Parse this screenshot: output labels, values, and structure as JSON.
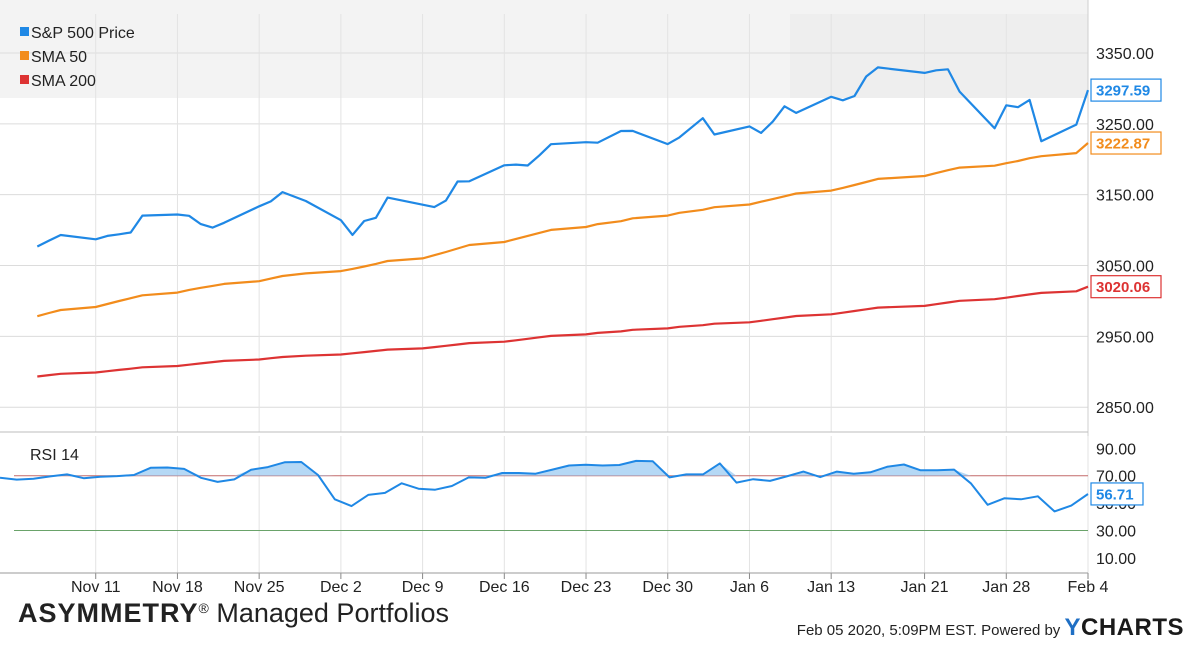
{
  "footer": {
    "brand_name": "ASYMMETRY",
    "brand_reg": "®",
    "brand_rest": " Managed Portfolios",
    "timestamp": "Feb 05 2020, 5:09PM EST.",
    "powered_by": "Powered by",
    "logo_y": "Y",
    "logo_rest": "CHARTS"
  },
  "colors": {
    "price": "#1f88e5",
    "sma50": "#f28c1c",
    "sma200": "#dd3333",
    "rsi": "#1f88e5",
    "rsi_fill": "#9ccbf2",
    "rsi_line70": "#c46a6a",
    "rsi_line30": "#6aa36a"
  },
  "chart_data": [
    {
      "type": "line",
      "x_dates": [
        "2019-11-06",
        "2019-11-07",
        "2019-11-08",
        "2019-11-11",
        "2019-11-12",
        "2019-11-13",
        "2019-11-14",
        "2019-11-15",
        "2019-11-18",
        "2019-11-19",
        "2019-11-20",
        "2019-11-21",
        "2019-11-22",
        "2019-11-25",
        "2019-11-26",
        "2019-11-27",
        "2019-11-29",
        "2019-12-02",
        "2019-12-03",
        "2019-12-04",
        "2019-12-05",
        "2019-12-06",
        "2019-12-09",
        "2019-12-10",
        "2019-12-11",
        "2019-12-12",
        "2019-12-13",
        "2019-12-16",
        "2019-12-17",
        "2019-12-18",
        "2019-12-19",
        "2019-12-20",
        "2019-12-23",
        "2019-12-24",
        "2019-12-26",
        "2019-12-27",
        "2019-12-30",
        "2019-12-31",
        "2020-01-02",
        "2020-01-03",
        "2020-01-06",
        "2020-01-07",
        "2020-01-08",
        "2020-01-09",
        "2020-01-10",
        "2020-01-13",
        "2020-01-14",
        "2020-01-15",
        "2020-01-16",
        "2020-01-17",
        "2020-01-21",
        "2020-01-22",
        "2020-01-23",
        "2020-01-24",
        "2020-01-27",
        "2020-01-28",
        "2020-01-29",
        "2020-01-30",
        "2020-01-31",
        "2020-02-03",
        "2020-02-04"
      ],
      "x_tick_labels": [
        "Nov 11",
        "Nov 18",
        "Nov 25",
        "Dec 2",
        "Dec 9",
        "Dec 16",
        "Dec 23",
        "Dec 30",
        "Jan 6",
        "Jan 13",
        "Jan 21",
        "Jan 28",
        "Feb 4"
      ],
      "x_tick_dates": [
        "2019-11-11",
        "2019-11-18",
        "2019-11-25",
        "2019-12-02",
        "2019-12-09",
        "2019-12-16",
        "2019-12-23",
        "2019-12-30",
        "2020-01-06",
        "2020-01-13",
        "2020-01-21",
        "2020-01-28",
        "2020-02-04"
      ],
      "y_ticks": [
        "3350.00",
        "3250.00",
        "3150.00",
        "3050.00",
        "2950.00",
        "2850.00"
      ],
      "y_tick_values": [
        3350,
        3250,
        3150,
        3050,
        2950,
        2850
      ],
      "ylim": [
        2815,
        3405
      ],
      "grid": true,
      "legend_position": "top-left",
      "series": [
        {
          "name": "S&P 500 Price",
          "color_key": "price",
          "last_label": "3297.59",
          "values": [
            3076.8,
            3085.2,
            3093.1,
            3087.0,
            3091.8,
            3094.0,
            3096.6,
            3120.5,
            3122.0,
            3120.2,
            3108.5,
            3103.5,
            3110.3,
            3133.6,
            3140.5,
            3153.6,
            3141.0,
            3113.9,
            3093.2,
            3112.8,
            3117.4,
            3145.9,
            3135.9,
            3132.5,
            3141.6,
            3168.6,
            3168.8,
            3191.5,
            3192.5,
            3191.1,
            3205.4,
            3221.2,
            3224.0,
            3223.4,
            3239.9,
            3240.0,
            3221.3,
            3230.8,
            3257.9,
            3234.9,
            3246.3,
            3237.2,
            3253.1,
            3274.7,
            3265.4,
            3288.1,
            3283.2,
            3289.3,
            3316.8,
            3329.6,
            3321.8,
            3325.5,
            3327.0,
            3295.5,
            3243.6,
            3276.2,
            3273.4,
            3283.7,
            3225.5,
            3248.9,
            3297.6
          ]
        },
        {
          "name": "SMA 50",
          "color_key": "sma50",
          "last_label": "3222.87",
          "values": [
            2978.5,
            2982.9,
            2987.2,
            2991.4,
            2995.6,
            2999.9,
            3003.9,
            3008.0,
            3011.8,
            3015.6,
            3018.6,
            3021.2,
            3024.1,
            3027.8,
            3031.5,
            3035.2,
            3038.8,
            3042.1,
            3045.2,
            3048.6,
            3052.2,
            3056.3,
            3060.1,
            3064.6,
            3069.1,
            3074.0,
            3078.9,
            3083.2,
            3087.5,
            3091.8,
            3096.0,
            3100.2,
            3104.4,
            3108.5,
            3112.6,
            3116.6,
            3120.4,
            3124.4,
            3128.7,
            3132.3,
            3136.1,
            3140.0,
            3143.8,
            3147.7,
            3151.6,
            3155.7,
            3159.6,
            3163.7,
            3167.9,
            3172.2,
            3176.3,
            3180.4,
            3184.5,
            3188.2,
            3190.9,
            3194.4,
            3197.5,
            3201.4,
            3204.3,
            3208.6,
            3222.9
          ]
        },
        {
          "name": "SMA 200",
          "color_key": "sma200",
          "last_label": "3020.06",
          "values": [
            2893.4,
            2895.3,
            2897.2,
            2899.0,
            2900.8,
            2902.6,
            2904.4,
            2906.3,
            2908.2,
            2910.0,
            2911.8,
            2913.6,
            2915.4,
            2917.3,
            2919.1,
            2920.9,
            2922.7,
            2924.4,
            2926.1,
            2927.8,
            2929.5,
            2931.3,
            2933.0,
            2934.8,
            2936.6,
            2938.5,
            2940.5,
            2942.4,
            2944.4,
            2946.5,
            2948.6,
            2950.7,
            2952.8,
            2954.9,
            2957.0,
            2959.2,
            2961.3,
            2963.5,
            2965.7,
            2967.8,
            2969.9,
            2972.0,
            2974.2,
            2976.5,
            2978.8,
            2981.1,
            2983.4,
            2985.8,
            2988.2,
            2990.6,
            2993.0,
            2995.4,
            2997.8,
            3000.2,
            3002.4,
            3004.6,
            3006.9,
            3009.2,
            3011.3,
            3013.6,
            3020.1
          ]
        }
      ]
    },
    {
      "type": "line",
      "title": "RSI 14",
      "y_ticks": [
        "90.00",
        "70.00",
        "50.00",
        "30.00",
        "10.00"
      ],
      "y_tick_values": [
        90,
        70,
        50,
        30,
        10
      ],
      "ylim": [
        -1,
        99
      ],
      "overbought": 70,
      "oversold": 30,
      "series": [
        {
          "name": "RSI 14",
          "color_key": "rsi",
          "last_label": "56.71",
          "values": [
            68.5,
            67.2,
            67.8,
            69.5,
            71.0,
            68.2,
            69.3,
            69.7,
            70.5,
            75.8,
            76.0,
            75.0,
            68.5,
            65.5,
            67.3,
            74.4,
            76.3,
            79.8,
            80.0,
            70.5,
            52.8,
            47.8,
            56.0,
            57.5,
            64.5,
            60.5,
            59.8,
            62.5,
            68.8,
            68.5,
            72.0,
            72.0,
            71.5,
            74.5,
            77.5,
            78.0,
            77.5,
            77.8,
            80.8,
            80.5,
            68.8,
            71.0,
            71.0,
            79.0,
            65.0,
            67.5,
            66.2,
            69.5,
            73.0,
            69.0,
            73.0,
            71.5,
            72.5,
            76.5,
            78.2,
            74.0,
            74.0,
            74.5,
            64.5,
            48.8,
            53.5,
            52.8,
            55.0,
            44.0,
            48.2,
            56.7
          ]
        }
      ]
    }
  ]
}
